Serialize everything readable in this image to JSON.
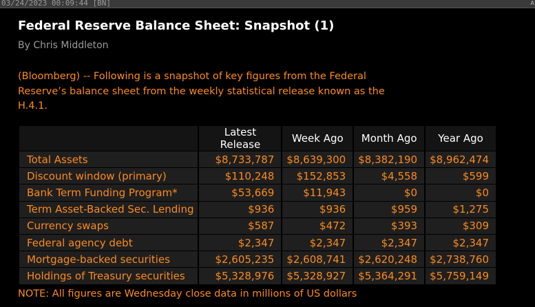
{
  "topbar": {
    "timestamp": "03/24/2023 00:09:44 [BN]",
    "corner_label": "A"
  },
  "story": {
    "headline": "Federal Reserve Balance Sheet: Snapshot (1)",
    "byline": "By Chris Middleton",
    "body": "(Bloomberg) --  Following is a snapshot of key figures from the Federal Reserve’s balance sheet from the weekly statistical release known as the H.4.1.",
    "note": "NOTE: All figures are Wednesday close data in millions of US dollars"
  },
  "table": {
    "columns": [
      "Latest Release",
      "Week Ago",
      "Month Ago",
      "Year Ago"
    ],
    "rows": [
      {
        "label": "Total Assets",
        "values": [
          "$8,733,787",
          "$8,639,300",
          "$8,382,190",
          "$8,962,474"
        ]
      },
      {
        "label": "Discount window (primary)",
        "values": [
          "$110,248",
          "$152,853",
          "$4,558",
          "$599"
        ]
      },
      {
        "label": "Bank Term Funding Program*",
        "values": [
          "$53,669",
          "$11,943",
          "$0",
          "$0"
        ]
      },
      {
        "label": "Term Asset-Backed Sec. Lending",
        "values": [
          "$936",
          "$936",
          "$959",
          "$1,275"
        ]
      },
      {
        "label": "Currency swaps",
        "values": [
          "$587",
          "$472",
          "$393",
          "$309"
        ]
      },
      {
        "label": "Federal agency debt",
        "values": [
          "$2,347",
          "$2,347",
          "$2,347",
          "$2,347"
        ]
      },
      {
        "label": "Mortgage-backed securities",
        "values": [
          "$2,605,235",
          "$2,608,741",
          "$2,620,248",
          "$2,738,760"
        ]
      },
      {
        "label": "Holdings of Treasury securities",
        "values": [
          "$5,328,976",
          "$5,328,927",
          "$5,364,291",
          "$5,759,149"
        ]
      }
    ]
  }
}
